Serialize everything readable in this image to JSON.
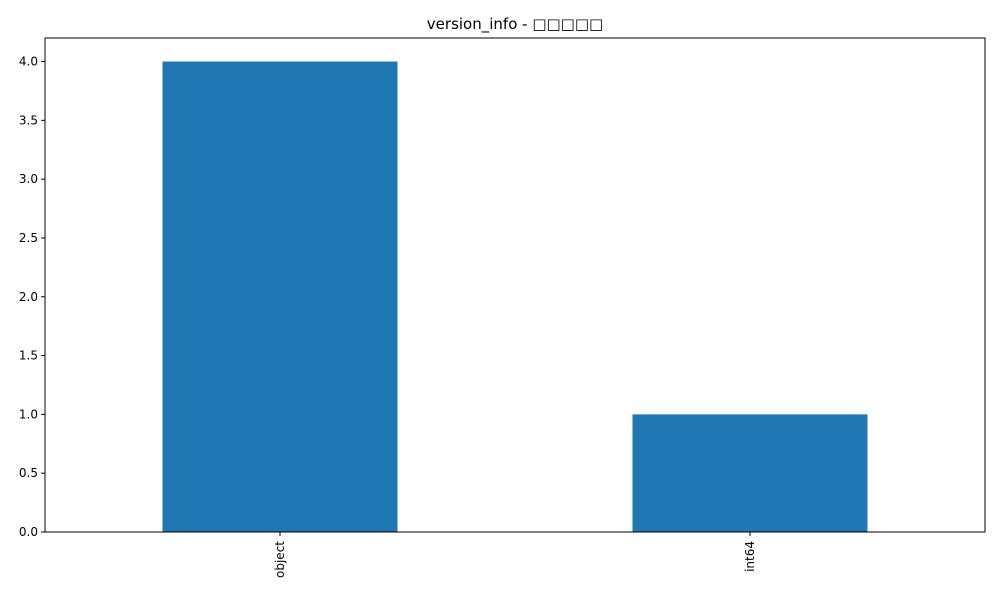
{
  "chart_data": {
    "type": "bar",
    "title": "version_info - □□□□□",
    "xlabel": "",
    "ylabel": "",
    "categories": [
      "object",
      "int64"
    ],
    "values": [
      4,
      1
    ],
    "ylim": [
      0,
      4.2
    ],
    "yticks": [
      0.0,
      0.5,
      1.0,
      1.5,
      2.0,
      2.5,
      3.0,
      3.5,
      4.0
    ],
    "ytick_labels": [
      "0.0",
      "0.5",
      "1.0",
      "1.5",
      "2.0",
      "2.5",
      "3.0",
      "3.5",
      "4.0"
    ],
    "xtick_rotation": "vertical",
    "grid": false,
    "legend": "none",
    "colors": {
      "bar": "#1f77b4",
      "axis": "#000000",
      "background": "#ffffff"
    }
  }
}
